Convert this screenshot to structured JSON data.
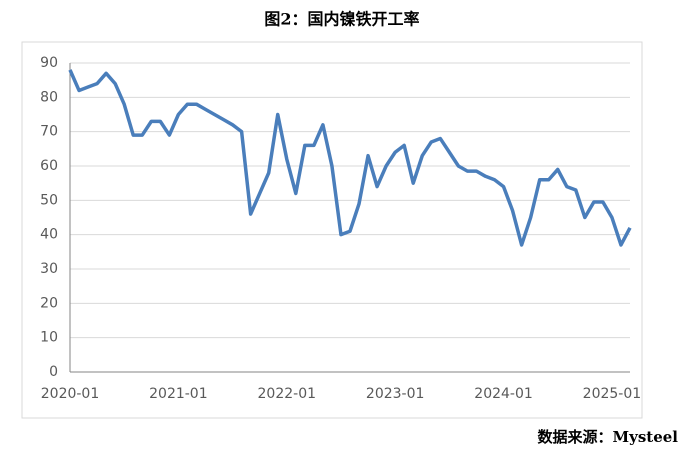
{
  "chart_data": {
    "type": "line",
    "title": "图2：国内镍铁开工率",
    "source": "数据来源：Mysteel",
    "categories": [
      "2020-01",
      null,
      null,
      null,
      null,
      null,
      null,
      null,
      null,
      null,
      null,
      null,
      "2021-01",
      null,
      null,
      null,
      null,
      null,
      null,
      null,
      null,
      null,
      null,
      null,
      "2022-01",
      null,
      null,
      null,
      null,
      null,
      null,
      null,
      null,
      null,
      null,
      null,
      "2023-01",
      null,
      null,
      null,
      null,
      null,
      null,
      null,
      null,
      null,
      null,
      null,
      "2024-01",
      null,
      null,
      null,
      null,
      null,
      null,
      null,
      null,
      null,
      null,
      null,
      "2025-01",
      null,
      null
    ],
    "series": [
      {
        "name": "镍铁开工率",
        "color": "#4a7ebb",
        "values": [
          88,
          82,
          83,
          84,
          87,
          84,
          78,
          69,
          69,
          73,
          73,
          69,
          75,
          78,
          78,
          76.5,
          75,
          73.5,
          72,
          70,
          46,
          52,
          58,
          75,
          62,
          52,
          66,
          66,
          72,
          60,
          40,
          41,
          49,
          63,
          54,
          60,
          64,
          66,
          55,
          63,
          67,
          68,
          64,
          60,
          58.5,
          58.5,
          57,
          56,
          54,
          47,
          37,
          45,
          56,
          56,
          59,
          54,
          53,
          45,
          49.5,
          49.5,
          45,
          37,
          42
        ]
      }
    ],
    "ylim": [
      0,
      90
    ],
    "yticks": [
      0,
      10,
      20,
      30,
      40,
      50,
      60,
      70,
      80,
      90
    ],
    "grid": true
  }
}
